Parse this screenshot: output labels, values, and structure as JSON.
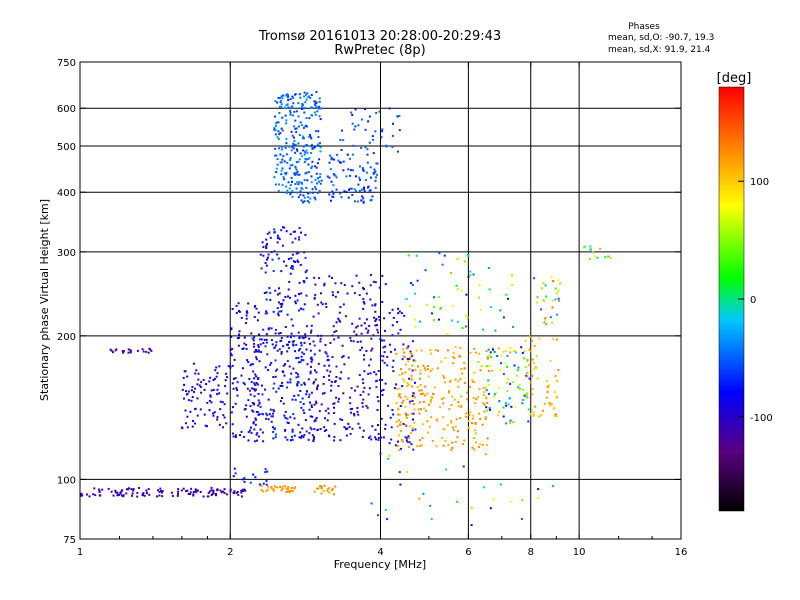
{
  "chart_data": {
    "type": "scatter",
    "title": "Tromsø 20161013 20:28:00-20:29:43",
    "subtitle": "RwPretec (8p)",
    "xlabel": "Frequency [MHz]",
    "ylabel": "Stationary phase Virtual Height [km]",
    "x_scale": "log",
    "y_scale": "log",
    "xlim": [
      1,
      16
    ],
    "ylim": [
      75,
      750
    ],
    "x_ticks": [
      1,
      2,
      4,
      6,
      8,
      10,
      16
    ],
    "y_ticks": [
      75,
      100,
      200,
      300,
      400,
      500,
      600,
      750
    ],
    "grid_x": [
      2,
      4,
      6,
      8,
      10
    ],
    "grid_y": [
      100,
      200,
      300,
      400,
      500,
      600
    ],
    "grid": true,
    "phase_info": {
      "title": "Phases",
      "line_o": "mean, sd,O: -90.7, 19.3",
      "line_x": "mean, sd,X:  91.9, 21.4"
    },
    "colorbar": {
      "label": "[deg]",
      "ticks": [
        100,
        0,
        -100
      ],
      "range": [
        -180,
        180
      ],
      "colors": [
        "#000000",
        "#5a0080",
        "#0000ff",
        "#00c8ff",
        "#00ff00",
        "#ffff00",
        "#ff8000",
        "#ff0000"
      ]
    },
    "clusters": [
      {
        "x": [
          1.0,
          2.15
        ],
        "y": [
          92,
          96
        ],
        "phase": [
          -120,
          -100
        ],
        "n": 130
      },
      {
        "x": [
          1.15,
          1.4
        ],
        "y": [
          184,
          188
        ],
        "phase": [
          -125,
          -110
        ],
        "n": 22
      },
      {
        "x": [
          2.3,
          2.7
        ],
        "y": [
          94,
          97
        ],
        "phase": [
          110,
          130
        ],
        "n": 35
      },
      {
        "x": [
          2.95,
          3.25
        ],
        "y": [
          93,
          97
        ],
        "phase": [
          110,
          130
        ],
        "n": 18
      },
      {
        "x": [
          2.0,
          2.4
        ],
        "y": [
          97,
          106
        ],
        "phase": [
          -90,
          -60
        ],
        "n": 16
      },
      {
        "x": [
          1.6,
          2.0
        ],
        "y": [
          128,
          175
        ],
        "phase": [
          -110,
          -80
        ],
        "n": 90
      },
      {
        "x": [
          2.0,
          2.3
        ],
        "y": [
          120,
          240
        ],
        "phase": [
          -110,
          -70
        ],
        "n": 110
      },
      {
        "x": [
          2.3,
          2.85
        ],
        "y": [
          190,
          340
        ],
        "phase": [
          -100,
          -60
        ],
        "n": 150
      },
      {
        "x": [
          2.2,
          3.0
        ],
        "y": [
          120,
          200
        ],
        "phase": [
          -110,
          -60
        ],
        "n": 230
      },
      {
        "x": [
          2.45,
          3.05
        ],
        "y": [
          380,
          650
        ],
        "phase": [
          -70,
          -30
        ],
        "n": 300
      },
      {
        "x": [
          3.1,
          3.95
        ],
        "y": [
          380,
          480
        ],
        "phase": [
          -80,
          -40
        ],
        "n": 90
      },
      {
        "x": [
          3.3,
          4.4
        ],
        "y": [
          480,
          600
        ],
        "phase": [
          -80,
          -40
        ],
        "n": 40
      },
      {
        "x": [
          2.9,
          4.1
        ],
        "y": [
          120,
          270
        ],
        "phase": [
          -120,
          -80
        ],
        "n": 260
      },
      {
        "x": [
          3.9,
          4.7
        ],
        "y": [
          115,
          240
        ],
        "phase": [
          -110,
          -60
        ],
        "n": 90
      },
      {
        "x": [
          4.3,
          6.6
        ],
        "y": [
          115,
          190
        ],
        "phase": [
          100,
          130
        ],
        "n": 260
      },
      {
        "x": [
          4.5,
          7.4
        ],
        "y": [
          200,
          300
        ],
        "phase": [
          -80,
          120
        ],
        "n": 60
      },
      {
        "x": [
          6.5,
          8.0
        ],
        "y": [
          130,
          190
        ],
        "phase": [
          -100,
          120
        ],
        "n": 90
      },
      {
        "x": [
          7.8,
          9.1
        ],
        "y": [
          135,
          200
        ],
        "phase": [
          90,
          130
        ],
        "n": 55
      },
      {
        "x": [
          8.1,
          9.2
        ],
        "y": [
          210,
          270
        ],
        "phase": [
          -60,
          140
        ],
        "n": 30
      },
      {
        "x": [
          3.6,
          9.0
        ],
        "y": [
          80,
          115
        ],
        "phase": [
          -90,
          120
        ],
        "n": 30
      },
      {
        "x": [
          10.2,
          11.6
        ],
        "y": [
          280,
          310
        ],
        "phase": [
          -40,
          120
        ],
        "n": 12
      }
    ]
  }
}
